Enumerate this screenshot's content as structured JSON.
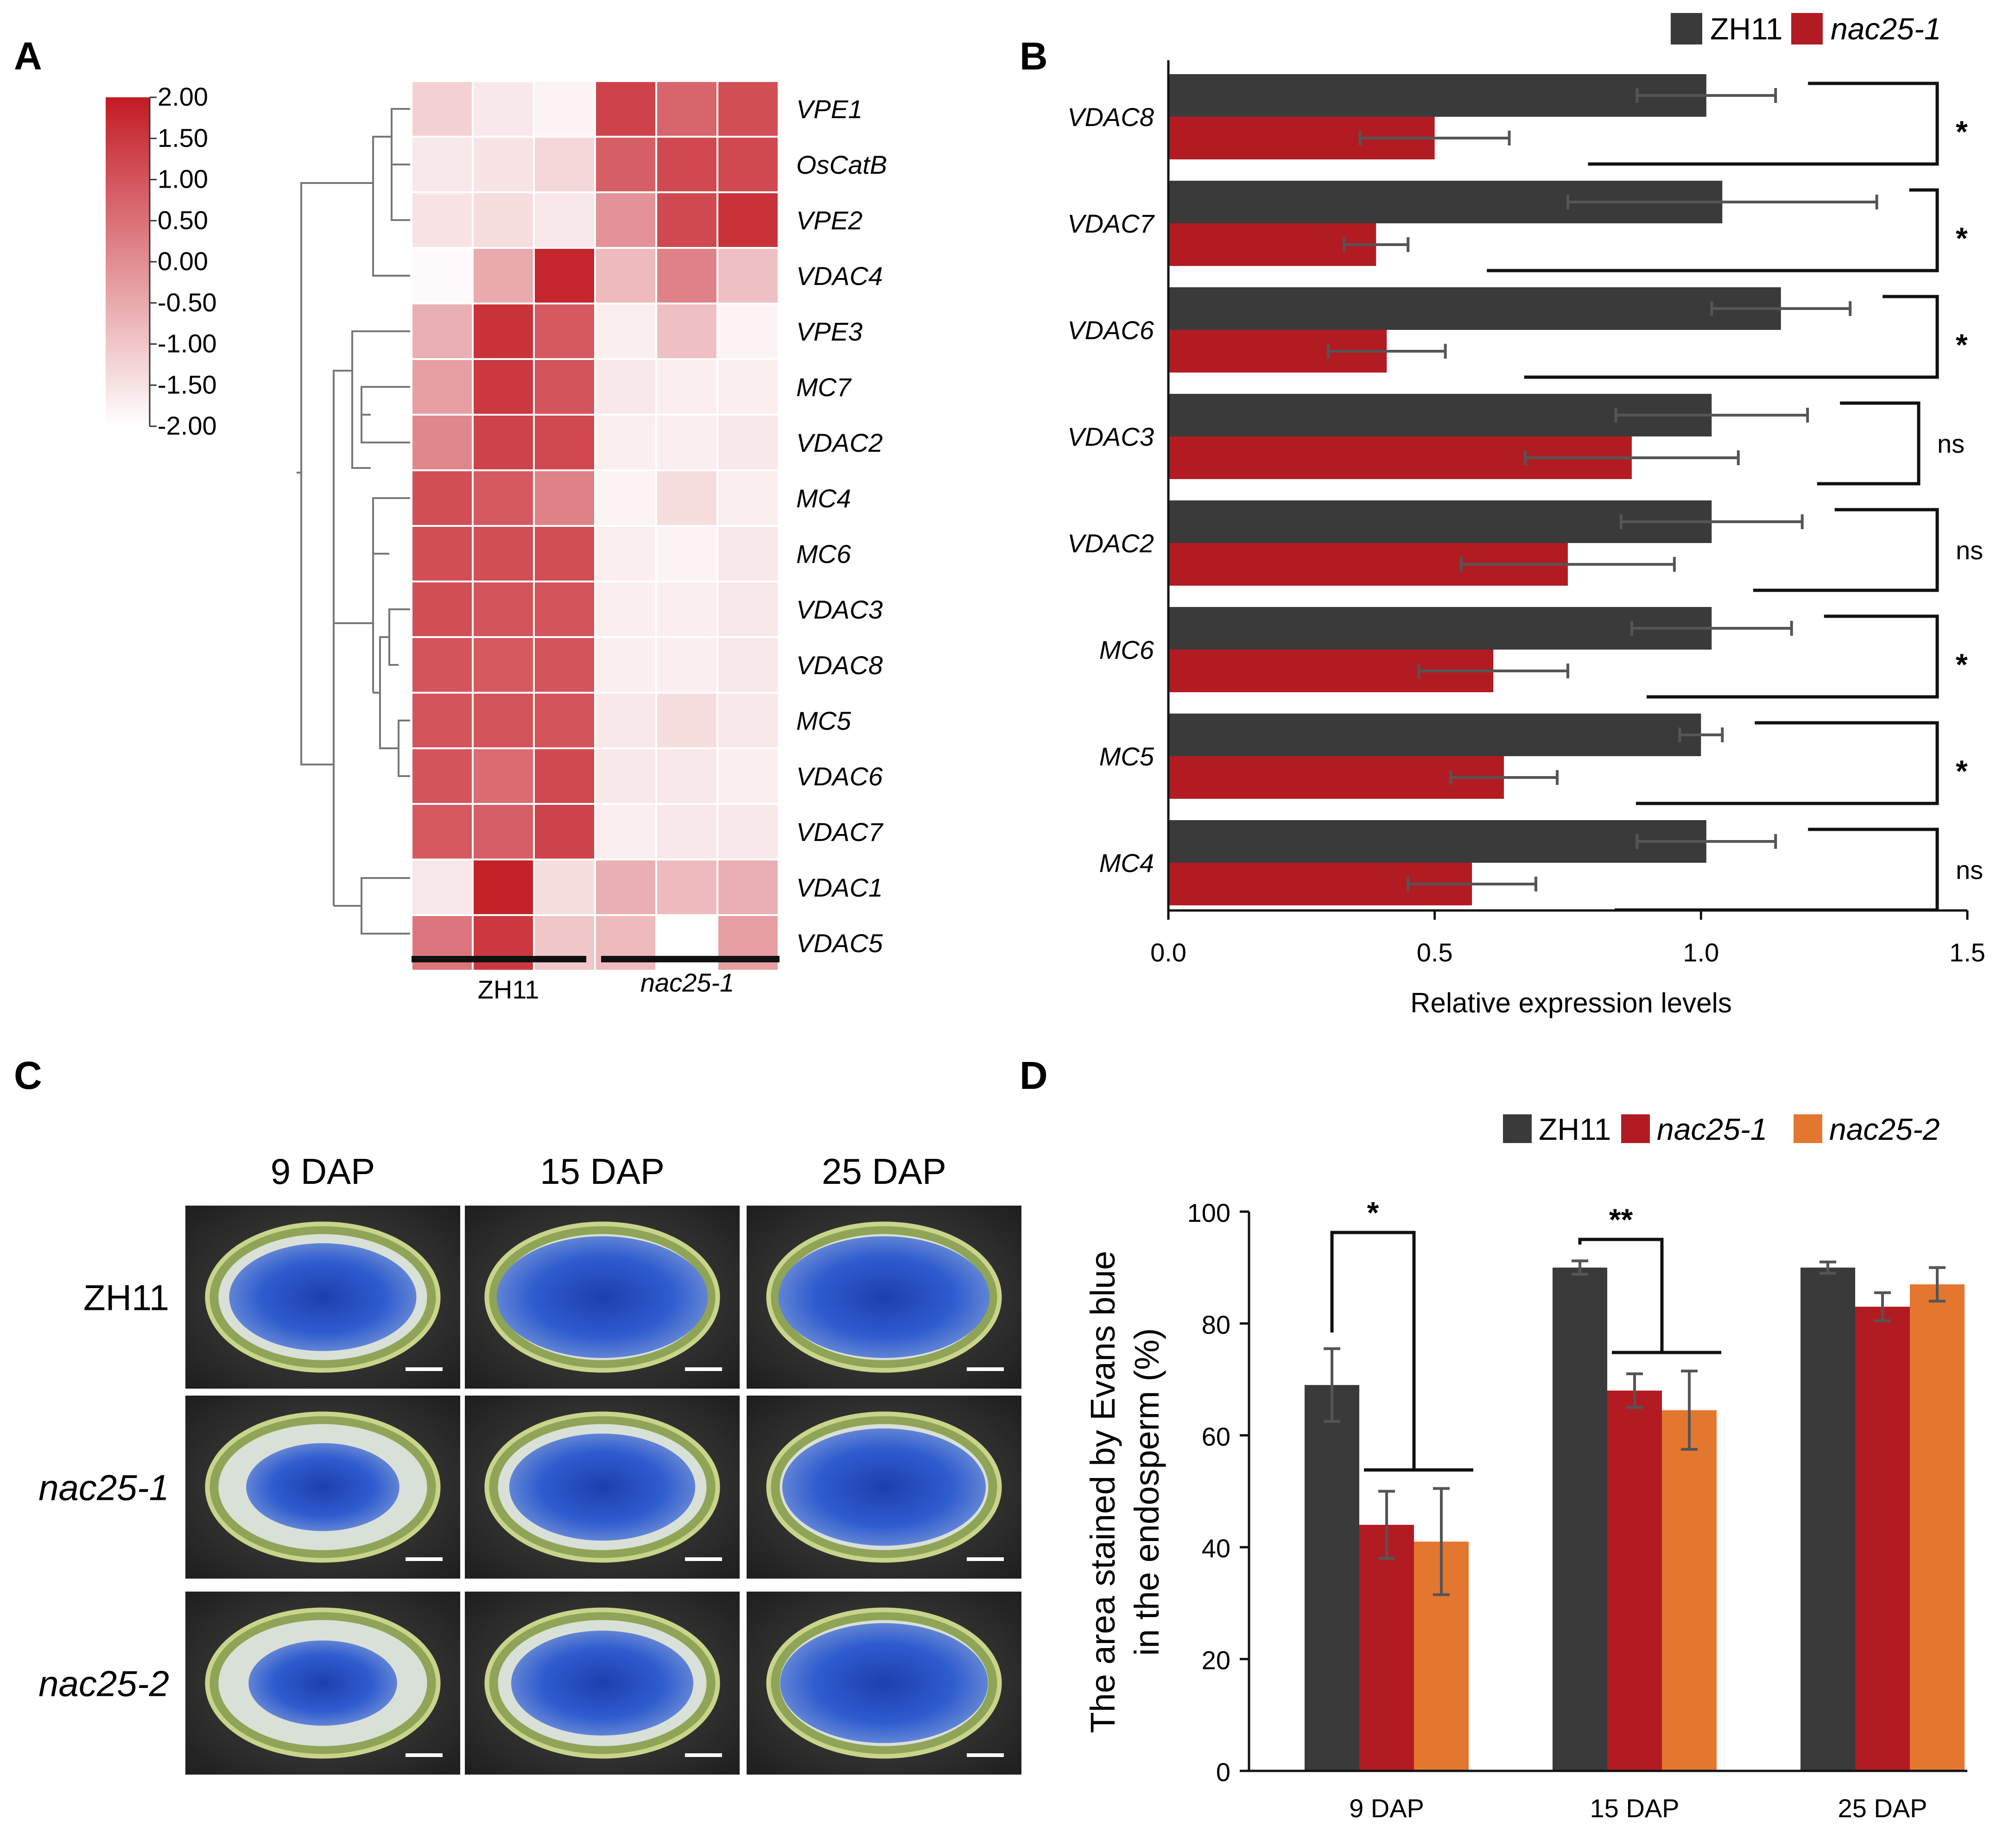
{
  "colors": {
    "zh11": "#3a3a3a",
    "nac25_1": "#b31b22",
    "nac25_2": "#e4772f",
    "heat_high": "#c41b24",
    "heat_low": "#ffffff",
    "stain_blue": "#2d57c9",
    "seed_rim": "#8a9f4a",
    "photo_bg": "#2a2a2a"
  },
  "panels": {
    "a": "A",
    "b": "B",
    "c": "C",
    "d": "D"
  },
  "heatmap": {
    "scale_ticks": [
      "2.00",
      "1.50",
      "1.00",
      "0.50",
      "0.00",
      "-0.50",
      "-1.00",
      "-1.50",
      "-2.00"
    ],
    "genes": [
      "VPE1",
      "OsCatB",
      "VPE2",
      "VDAC4",
      "VPE3",
      "MC7",
      "VDAC2",
      "MC4",
      "MC6",
      "VDAC3",
      "VDAC8",
      "MC5",
      "VDAC6",
      "VDAC7",
      "VDAC1",
      "VDAC5"
    ],
    "group_labels": [
      "ZH11",
      "nac25-1"
    ],
    "values": [
      [
        -1.2,
        -1.6,
        -1.8,
        1.3,
        0.7,
        1.1
      ],
      [
        -1.6,
        -1.5,
        -1.3,
        0.8,
        1.2,
        1.2
      ],
      [
        -1.5,
        -1.4,
        -1.6,
        -0.1,
        1.2,
        1.6
      ],
      [
        -1.9,
        -0.5,
        1.8,
        -0.8,
        0.2,
        -0.9
      ],
      [
        -0.6,
        1.6,
        0.9,
        -1.7,
        -0.9,
        -1.8
      ],
      [
        -0.3,
        1.5,
        1.0,
        -1.6,
        -1.7,
        -1.7
      ],
      [
        0.1,
        1.3,
        1.2,
        -1.7,
        -1.7,
        -1.6
      ],
      [
        1.1,
        0.9,
        0.2,
        -1.8,
        -1.4,
        -1.7
      ],
      [
        1.1,
        1.1,
        1.1,
        -1.7,
        -1.8,
        -1.6
      ],
      [
        1.1,
        1.0,
        1.0,
        -1.7,
        -1.7,
        -1.6
      ],
      [
        1.0,
        0.9,
        1.0,
        -1.7,
        -1.7,
        -1.6
      ],
      [
        1.0,
        1.0,
        1.0,
        -1.6,
        -1.4,
        -1.6
      ],
      [
        1.0,
        0.6,
        1.2,
        -1.6,
        -1.6,
        -1.7
      ],
      [
        0.9,
        0.8,
        1.3,
        -1.7,
        -1.6,
        -1.6
      ],
      [
        -1.6,
        1.9,
        -1.4,
        -0.6,
        -0.8,
        -0.6
      ],
      [
        0.4,
        1.5,
        -1.0,
        -0.8,
        -2.0,
        -0.3
      ]
    ]
  },
  "chart_data": [
    {
      "type": "bar",
      "orientation": "horizontal",
      "categories": [
        "VDAC8",
        "VDAC7",
        "VDAC6",
        "VDAC3",
        "VDAC2",
        "MC6",
        "MC5",
        "MC4"
      ],
      "series": [
        {
          "name": "ZH11",
          "values": [
            1.01,
            1.04,
            1.15,
            1.02,
            1.02,
            1.02,
            1.0,
            1.01
          ],
          "errors": [
            0.13,
            0.29,
            0.13,
            0.18,
            0.17,
            0.15,
            0.04,
            0.13
          ]
        },
        {
          "name": "nac25-1",
          "values": [
            0.5,
            0.39,
            0.41,
            0.87,
            0.75,
            0.61,
            0.63,
            0.57
          ],
          "errors": [
            0.14,
            0.06,
            0.11,
            0.2,
            0.2,
            0.14,
            0.1,
            0.12
          ]
        }
      ],
      "significance": [
        "*",
        "*",
        "*",
        "ns",
        "ns",
        "*",
        "*",
        "ns"
      ],
      "xlabel": "Relative expression levels",
      "xlim": [
        0,
        1.5
      ],
      "xticks": [
        "0.0",
        "0.5",
        "1.0",
        "1.5"
      ],
      "legend": "top-right"
    },
    {
      "type": "bar",
      "categories": [
        "9 DAP",
        "15 DAP",
        "25 DAP"
      ],
      "series": [
        {
          "name": "ZH11",
          "values": [
            69,
            90,
            90
          ],
          "errors": [
            6.5,
            1.2,
            1.0
          ]
        },
        {
          "name": "nac25-1",
          "values": [
            44,
            68,
            83
          ],
          "errors": [
            6,
            3,
            2.5
          ]
        },
        {
          "name": "nac25-2",
          "values": [
            41,
            64.5,
            87
          ],
          "errors": [
            9.5,
            7,
            3
          ]
        }
      ],
      "significance": [
        "*",
        "**",
        ""
      ],
      "ylabel_lines": [
        "The area stained by Evans blue",
        "in the endosperm (%)"
      ],
      "ylim": [
        0,
        100
      ],
      "yticks": [
        "0",
        "20",
        "40",
        "60",
        "80",
        "100"
      ],
      "legend": "top-right"
    }
  ],
  "photos": {
    "columns": [
      "9 DAP",
      "15 DAP",
      "25 DAP"
    ],
    "rows": [
      "ZH11",
      "nac25-1",
      "nac25-2"
    ],
    "stain_fraction": [
      [
        0.69,
        0.9,
        0.9
      ],
      [
        0.44,
        0.68,
        0.83
      ],
      [
        0.41,
        0.65,
        0.87
      ]
    ]
  }
}
